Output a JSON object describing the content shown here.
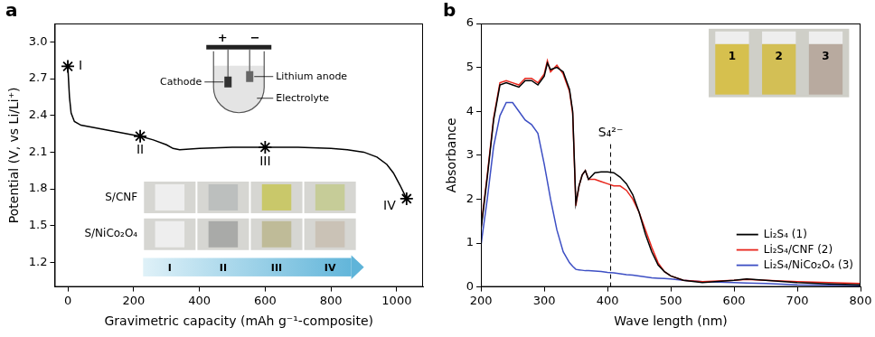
{
  "chart_data": [
    {
      "panel": "a",
      "type": "line",
      "color": "#000000",
      "x": [
        0,
        5,
        10,
        20,
        40,
        80,
        120,
        160,
        200,
        220,
        260,
        300,
        320,
        340,
        400,
        500,
        600,
        700,
        800,
        850,
        900,
        940,
        970,
        990,
        1010,
        1030
      ],
      "values": [
        2.8,
        2.55,
        2.42,
        2.35,
        2.32,
        2.3,
        2.28,
        2.26,
        2.24,
        2.23,
        2.2,
        2.16,
        2.13,
        2.12,
        2.13,
        2.14,
        2.14,
        2.14,
        2.13,
        2.12,
        2.1,
        2.06,
        2.0,
        1.93,
        1.83,
        1.72
      ],
      "xlabel": "Gravimetric capacity (mAh g⁻¹-composite)",
      "ylabel": "Potential (V, vs Li/Li⁺)",
      "xlim": [
        -40,
        1080
      ],
      "xticks": [
        0,
        200,
        400,
        600,
        800,
        1000
      ],
      "ylim": [
        1.0,
        3.15
      ],
      "yticks": [
        1.2,
        1.5,
        1.8,
        2.1,
        2.4,
        2.7,
        {
          "value": 3,
          "label": "3.0"
        }
      ],
      "grid": false,
      "markers": {
        "x": [
          0,
          220,
          600,
          1030
        ],
        "values": [
          2.8,
          2.23,
          2.14,
          1.72
        ],
        "labels": [
          "I",
          "II",
          "III",
          "IV"
        ],
        "marker": "star"
      },
      "inset_cell": {
        "positive": "+",
        "negative": "−",
        "labels": [
          "Cathode",
          "Lithium anode",
          "Electrolyte"
        ]
      },
      "inset_photos": {
        "rows": [
          "S/CNF",
          "S/NiCo₂O₄"
        ],
        "stages": [
          "I",
          "II",
          "III",
          "IV"
        ]
      }
    },
    {
      "panel": "b",
      "type": "line",
      "x": [
        200,
        210,
        220,
        230,
        240,
        250,
        260,
        270,
        280,
        290,
        300,
        305,
        310,
        320,
        330,
        340,
        345,
        350,
        355,
        360,
        365,
        370,
        380,
        390,
        400,
        410,
        420,
        430,
        440,
        450,
        460,
        470,
        480,
        490,
        500,
        520,
        550,
        600,
        620,
        650,
        700,
        750,
        800
      ],
      "series": [
        {
          "name": "Li₂S₄ (1)",
          "color": "#000000",
          "values": [
            1.3,
            2.5,
            3.8,
            4.6,
            4.65,
            4.6,
            4.55,
            4.7,
            4.7,
            4.6,
            4.8,
            5.1,
            4.95,
            5.0,
            4.9,
            4.5,
            4.0,
            1.9,
            2.3,
            2.55,
            2.65,
            2.45,
            2.6,
            2.62,
            2.62,
            2.6,
            2.5,
            2.35,
            2.1,
            1.7,
            1.2,
            0.8,
            0.5,
            0.35,
            0.25,
            0.15,
            0.1,
            0.15,
            0.18,
            0.15,
            0.1,
            0.07,
            0.05
          ]
        },
        {
          "name": "Li₂S₄/CNF (2)",
          "color": "#e8261c",
          "values": [
            1.35,
            2.55,
            3.85,
            4.65,
            4.7,
            4.65,
            4.6,
            4.75,
            4.75,
            4.65,
            4.85,
            5.15,
            4.9,
            5.05,
            4.85,
            4.45,
            3.95,
            1.85,
            2.3,
            2.55,
            2.65,
            2.45,
            2.45,
            2.4,
            2.35,
            2.3,
            2.3,
            2.2,
            2.0,
            1.7,
            1.3,
            0.9,
            0.55,
            0.35,
            0.25,
            0.15,
            0.12,
            0.15,
            0.17,
            0.15,
            0.12,
            0.1,
            0.08
          ]
        },
        {
          "name": "Li₂S₄/NiCo₂O₄ (3)",
          "color": "#3d4fc4",
          "values": [
            0.95,
            2.0,
            3.2,
            3.9,
            4.2,
            4.2,
            4.0,
            3.8,
            3.7,
            3.5,
            2.8,
            2.4,
            2.0,
            1.3,
            0.8,
            0.55,
            0.47,
            0.4,
            0.39,
            0.38,
            0.37,
            0.37,
            0.36,
            0.35,
            0.33,
            0.32,
            0.3,
            0.28,
            0.27,
            0.25,
            0.23,
            0.21,
            0.2,
            0.19,
            0.18,
            0.15,
            0.12,
            0.1,
            0.09,
            0.08,
            0.05,
            0.04,
            0.03
          ]
        }
      ],
      "xlabel": "Wave length (nm)",
      "ylabel": "Absorbance",
      "xlim": [
        200,
        800
      ],
      "xticks": [
        200,
        300,
        400,
        500,
        600,
        700,
        800
      ],
      "ylim": [
        0,
        6
      ],
      "yticks": [
        0,
        1,
        2,
        3,
        4,
        5,
        6
      ],
      "grid": false,
      "legend": "lower right",
      "annotation": {
        "text": "S₄²⁻",
        "x": 405,
        "line_style": "dashed"
      },
      "inset_photo": {
        "labels": [
          "1",
          "2",
          "3"
        ]
      }
    }
  ]
}
